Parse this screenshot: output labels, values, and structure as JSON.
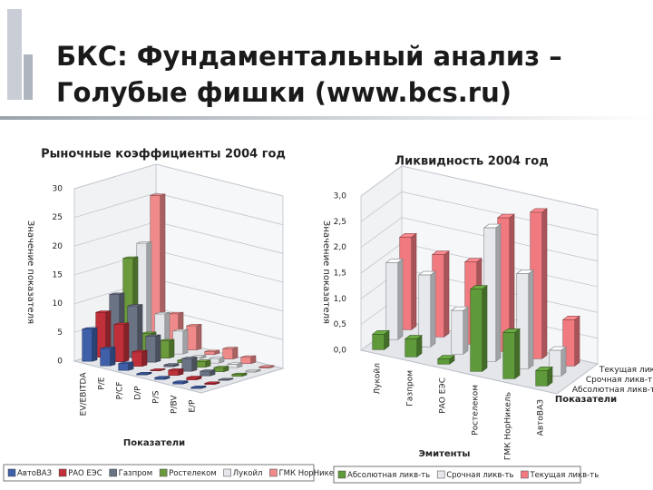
{
  "slide": {
    "title_lines": [
      "БКС: Фундаментальный анализ –",
      "Голубые фишки (www.bcs.ru)"
    ]
  },
  "chart_data": [
    {
      "type": "bar3d",
      "title": "Рыночные коэффициенты 2004 год",
      "x_label": "Показатели",
      "y_label": "Значение показателя",
      "categories": [
        "EV/EBITDA",
        "P/E",
        "P/CF",
        "D/P",
        "P/S",
        "P/BV",
        "E/P"
      ],
      "ylim": [
        0,
        30
      ],
      "yticks": [
        0,
        5,
        10,
        15,
        20,
        25,
        30
      ],
      "grid": true,
      "series": [
        {
          "name": "АвтоВАЗ",
          "color": "#3f5fa8",
          "values": [
            5.6,
            3.0,
            1.2,
            0.2,
            0.3,
            0.3,
            0.2
          ]
        },
        {
          "name": "РАО ЕЭС",
          "color": "#c0303a",
          "values": [
            7.8,
            6.5,
            2.5,
            0.1,
            0.9,
            0.4,
            0.2
          ]
        },
        {
          "name": "Газпром",
          "color": "#6a7384",
          "values": [
            10.2,
            9.0,
            4.5,
            0.3,
            2.2,
            0.8,
            0.1
          ]
        },
        {
          "name": "Ростелеком",
          "color": "#6a9a3c",
          "values": [
            15.8,
            3.5,
            3.0,
            0.4,
            1.0,
            0.7,
            0.3
          ]
        },
        {
          "name": "Лукойл",
          "color": "#e4e6ea",
          "values": [
            17.7,
            6.2,
            4.0,
            0.3,
            0.8,
            0.6,
            0.2
          ]
        },
        {
          "name": "ГМК НорНикель",
          "color": "#f08a8a",
          "values": [
            25.3,
            5.5,
            4.2,
            0.5,
            1.8,
            1.1,
            0.2
          ]
        }
      ]
    },
    {
      "type": "bar3d",
      "title": "Ликвидность 2004 год",
      "x_label": "Эмитенты",
      "y_label": "Значение показателя",
      "z_label": "Показатели",
      "categories": [
        "Лукойл",
        "Газпром",
        "РАО ЕЭС",
        "Ростелеком",
        "ГМК НорНикель",
        "АвтоВАЗ"
      ],
      "ylim": [
        0,
        3
      ],
      "yticks": [
        {
          "value": 0,
          "label": "0,0"
        },
        {
          "value": 0.5,
          "label": "0,5"
        },
        {
          "value": 1,
          "label": "1,0"
        },
        {
          "value": 1.5,
          "label": "1,5"
        },
        {
          "value": 2,
          "label": "2,0"
        },
        {
          "value": 2.5,
          "label": "2,5"
        },
        {
          "value": 3,
          "label": "3,0"
        }
      ],
      "grid": true,
      "series": [
        {
          "name": "Абсолютная ликв-ть",
          "color": "#5f9a3a",
          "values": [
            0.3,
            0.35,
            0.1,
            1.6,
            0.9,
            0.3
          ]
        },
        {
          "name": "Срочная ликв-ть",
          "color": "#e6e8ec",
          "values": [
            1.5,
            1.4,
            0.85,
            2.6,
            1.85,
            0.5
          ]
        },
        {
          "name": "Текущая ликв-ть",
          "color": "#f07a80",
          "values": [
            1.8,
            1.6,
            1.6,
            2.6,
            2.85,
            0.9
          ]
        }
      ]
    }
  ]
}
